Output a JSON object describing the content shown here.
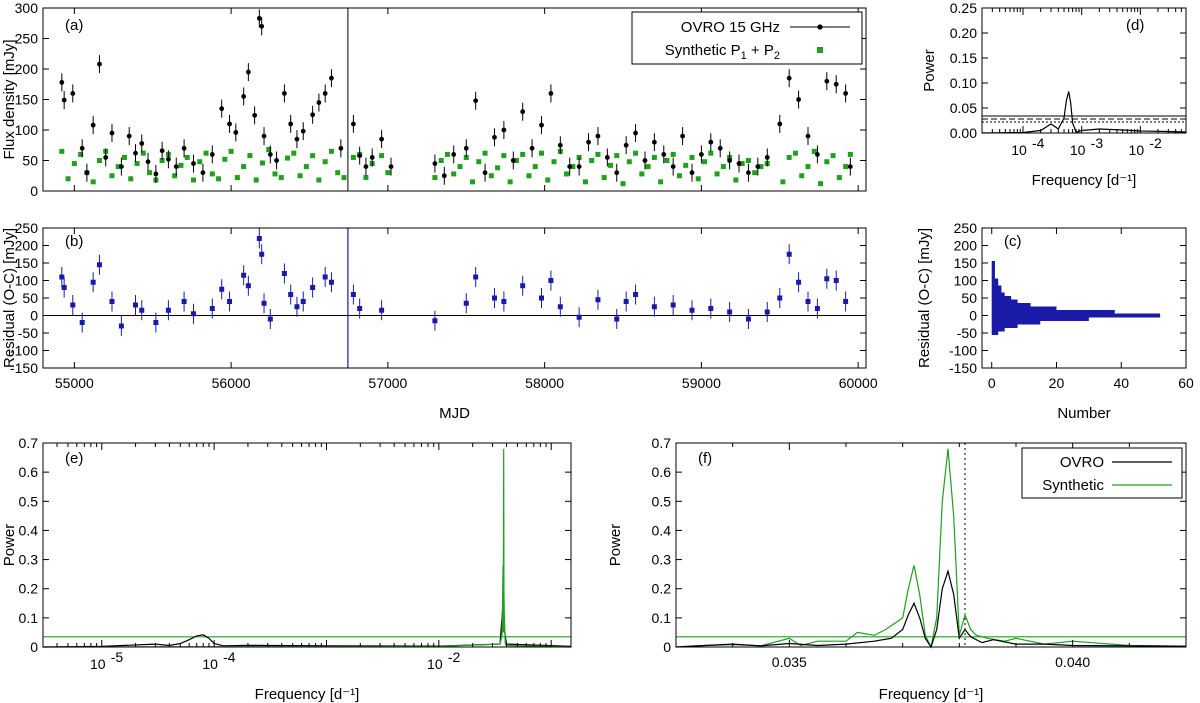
{
  "colors": {
    "ovro": "#000000",
    "synthetic": "#1fa01f",
    "residual": "#1a1aa8"
  },
  "chart_data": [
    {
      "id": "a",
      "panel_label": "(a)",
      "type": "scatter",
      "xlabel": "",
      "ylabel": "Flux density [mJy]",
      "xlim": [
        54800,
        60050
      ],
      "ylim": [
        0,
        300
      ],
      "yticks": [
        0,
        50,
        100,
        150,
        200,
        250,
        300
      ],
      "xticks": [
        55000,
        56000,
        57000,
        58000,
        59000,
        60000
      ],
      "grid": false,
      "legend_position": "top-right",
      "vertical_line_x": 56745,
      "series": [
        {
          "name": "OVRO 15 GHz",
          "name_main": "OVRO 15 GHz",
          "style": "points-with-errorbars",
          "x": [
            54920,
            54935,
            54990,
            55050,
            55080,
            55120,
            55160,
            55200,
            55240,
            55300,
            55350,
            55390,
            55430,
            55470,
            55520,
            55560,
            55600,
            55650,
            55700,
            55760,
            55820,
            55880,
            55940,
            55990,
            56030,
            56080,
            56110,
            56150,
            56180,
            56195,
            56210,
            56250,
            56290,
            56340,
            56380,
            56420,
            56460,
            56520,
            56560,
            56600,
            56640,
            56700,
            56780,
            56820,
            56860,
            56900,
            56960,
            57020,
            57300,
            57360,
            57420,
            57500,
            57560,
            57620,
            57680,
            57740,
            57800,
            57860,
            57920,
            57980,
            58040,
            58100,
            58160,
            58220,
            58280,
            58340,
            58400,
            58460,
            58520,
            58580,
            58640,
            58700,
            58760,
            58820,
            58880,
            58940,
            59000,
            59060,
            59120,
            59180,
            59240,
            59300,
            59360,
            59420,
            59500,
            59560,
            59620,
            59680,
            59740,
            59800,
            59860,
            59920,
            59950
          ],
          "y": [
            178,
            149,
            160,
            70,
            30,
            108,
            208,
            55,
            95,
            40,
            90,
            62,
            78,
            48,
            28,
            66,
            52,
            40,
            70,
            45,
            30,
            60,
            135,
            110,
            96,
            155,
            195,
            124,
            283,
            270,
            90,
            60,
            50,
            160,
            110,
            85,
            98,
            125,
            145,
            160,
            185,
            70,
            110,
            58,
            40,
            55,
            85,
            40,
            45,
            25,
            60,
            70,
            148,
            30,
            88,
            100,
            50,
            130,
            70,
            108,
            160,
            75,
            40,
            40,
            80,
            90,
            55,
            30,
            75,
            95,
            50,
            80,
            60,
            40,
            90,
            30,
            60,
            80,
            70,
            50,
            45,
            30,
            40,
            55,
            110,
            185,
            150,
            90,
            60,
            180,
            175,
            160,
            40
          ]
        },
        {
          "name": "Synthetic P1 + P2",
          "name_main": "Synthetic P",
          "sub1": "1",
          "plus": " + P",
          "sub2": "2",
          "style": "squares",
          "x": [
            54920,
            54960,
            55000,
            55040,
            55080,
            55120,
            55160,
            55200,
            55240,
            55280,
            55320,
            55360,
            55400,
            55440,
            55480,
            55520,
            55560,
            55600,
            55640,
            55680,
            55720,
            55760,
            55800,
            55840,
            55880,
            55920,
            55960,
            56000,
            56040,
            56080,
            56120,
            56160,
            56200,
            56240,
            56280,
            56320,
            56360,
            56400,
            56440,
            56480,
            56520,
            56560,
            56600,
            56640,
            56680,
            56720,
            56780,
            56820,
            56860,
            56900,
            56960,
            57000,
            57300,
            57340,
            57380,
            57420,
            57460,
            57500,
            57540,
            57580,
            57620,
            57660,
            57700,
            57740,
            57780,
            57820,
            57860,
            57900,
            57940,
            57980,
            58020,
            58060,
            58100,
            58140,
            58180,
            58220,
            58260,
            58300,
            58340,
            58380,
            58420,
            58460,
            58500,
            58540,
            58580,
            58620,
            58660,
            58700,
            58740,
            58780,
            58820,
            58860,
            58900,
            58940,
            58980,
            59020,
            59060,
            59100,
            59140,
            59180,
            59220,
            59260,
            59300,
            59340,
            59380,
            59420,
            59520,
            59560,
            59600,
            59640,
            59680,
            59720,
            59760,
            59800,
            59840,
            59880,
            59920,
            59950
          ],
          "y": [
            65,
            20,
            45,
            60,
            30,
            15,
            50,
            65,
            25,
            40,
            55,
            20,
            45,
            62,
            30,
            18,
            50,
            60,
            25,
            42,
            55,
            18,
            48,
            62,
            28,
            20,
            52,
            65,
            22,
            40,
            58,
            18,
            46,
            68,
            28,
            22,
            54,
            62,
            25,
            40,
            58,
            18,
            48,
            65,
            30,
            22,
            55,
            60,
            22,
            45,
            58,
            30,
            22,
            50,
            60,
            28,
            40,
            55,
            15,
            48,
            62,
            25,
            38,
            58,
            15,
            50,
            60,
            25,
            40,
            62,
            18,
            48,
            65,
            28,
            40,
            55,
            15,
            50,
            60,
            22,
            42,
            58,
            12,
            48,
            62,
            28,
            40,
            55,
            15,
            50,
            60,
            25,
            42,
            55,
            20,
            48,
            62,
            28,
            40,
            55,
            18,
            45,
            50,
            30,
            40,
            45,
            15,
            55,
            62,
            25,
            40,
            65,
            12,
            48,
            58,
            22,
            40,
            60
          ]
        }
      ]
    },
    {
      "id": "b",
      "panel_label": "(b)",
      "type": "scatter",
      "xlabel": "MJD",
      "ylabel": "Residual (O-C) [mJy]",
      "xlim": [
        54800,
        60050
      ],
      "ylim": [
        -150,
        250
      ],
      "yticks": [
        -150,
        -100,
        -50,
        0,
        50,
        100,
        150,
        200,
        250
      ],
      "xticks": [
        55000,
        56000,
        57000,
        58000,
        59000,
        60000
      ],
      "grid": false,
      "vertical_line_x": 56745,
      "zero_line": true,
      "series": [
        {
          "name": "Residual (O-C)",
          "style": "points-with-errorbars",
          "x": [
            54920,
            54935,
            54990,
            55050,
            55120,
            55160,
            55240,
            55300,
            55390,
            55430,
            55520,
            55600,
            55700,
            55760,
            55880,
            55940,
            55990,
            56080,
            56110,
            56180,
            56195,
            56210,
            56250,
            56340,
            56380,
            56420,
            56460,
            56520,
            56600,
            56640,
            56780,
            56820,
            56960,
            57300,
            57500,
            57560,
            57680,
            57740,
            57860,
            57980,
            58040,
            58100,
            58220,
            58340,
            58460,
            58520,
            58580,
            58700,
            58820,
            58940,
            59060,
            59180,
            59300,
            59420,
            59500,
            59560,
            59620,
            59680,
            59740,
            59800,
            59860,
            59920
          ],
          "y": [
            110,
            80,
            30,
            -20,
            95,
            145,
            40,
            -30,
            30,
            15,
            -20,
            15,
            40,
            5,
            20,
            75,
            40,
            115,
            85,
            220,
            175,
            35,
            -10,
            120,
            60,
            25,
            40,
            80,
            110,
            95,
            60,
            20,
            15,
            -15,
            35,
            110,
            50,
            40,
            85,
            50,
            100,
            25,
            -5,
            45,
            -10,
            40,
            60,
            25,
            30,
            15,
            20,
            10,
            -10,
            10,
            50,
            175,
            95,
            40,
            20,
            105,
            100,
            40
          ]
        }
      ]
    },
    {
      "id": "c",
      "panel_label": "(c)",
      "type": "bar",
      "orientation": "horizontal",
      "xlabel": "Number",
      "ylabel": "Residual (O-C) [mJy]",
      "xlim": [
        -3,
        60
      ],
      "ylim": [
        -150,
        250
      ],
      "xticks": [
        0,
        20,
        40,
        60
      ],
      "yticks": [
        -150,
        -100,
        -50,
        0,
        50,
        100,
        150,
        200,
        250
      ],
      "categories": [
        -50,
        -40,
        -30,
        -20,
        -10,
        0,
        10,
        20,
        30,
        40,
        50,
        60,
        70,
        80,
        90,
        100,
        110,
        120,
        130,
        140,
        150
      ],
      "values": [
        2,
        4,
        8,
        15,
        30,
        52,
        38,
        20,
        12,
        8,
        6,
        4,
        3,
        3,
        2,
        2,
        1,
        1,
        1,
        1,
        1
      ]
    },
    {
      "id": "d",
      "panel_label": "(d)",
      "type": "line",
      "xscale": "log",
      "xlabel": "Frequency [d⁻¹]",
      "ylabel": "Power",
      "xlim": [
        2e-05,
        0.06
      ],
      "ylim": [
        0,
        0.25
      ],
      "yticks": [
        0,
        0.05,
        0.1,
        0.15,
        0.2,
        0.25
      ],
      "xtick_labels": [
        "10",
        "10",
        "10"
      ],
      "xtick_exponents": [
        "-4",
        "-3",
        "-2"
      ],
      "xtick_values": [
        0.0001,
        0.001,
        0.01
      ],
      "significance_levels": [
        0.034,
        0.028,
        0.022
      ],
      "x": [
        2e-05,
        0.0001,
        0.0002,
        0.0003,
        0.0004,
        0.0005,
        0.00055,
        0.0006,
        0.00065,
        0.0007,
        0.0008,
        0.001,
        0.002,
        0.005,
        0.01,
        0.03,
        0.06
      ],
      "y": [
        0.0,
        0.001,
        0.005,
        0.018,
        0.008,
        0.03,
        0.065,
        0.083,
        0.06,
        0.02,
        0.002,
        0.005,
        0.008,
        0.006,
        0.004,
        0.003,
        0.002
      ]
    },
    {
      "id": "e",
      "panel_label": "(e)",
      "type": "line",
      "xscale": "log",
      "xlabel": "Frequency [d⁻¹]",
      "ylabel": "Power",
      "xlim": [
        3e-06,
        0.15
      ],
      "ylim": [
        0,
        0.7
      ],
      "yticks": [
        0,
        0.1,
        0.2,
        0.3,
        0.4,
        0.5,
        0.6,
        0.7
      ],
      "xtick_labels": [
        "10",
        "10",
        "10"
      ],
      "xtick_exponents": [
        "-5",
        "-4",
        "-2"
      ],
      "xtick_values": [
        1e-05,
        0.0001,
        0.01
      ],
      "significance_level": 0.035,
      "series": [
        {
          "name": "OVRO",
          "x": [
            3e-06,
            1e-05,
            3e-05,
            4e-05,
            5e-05,
            6e-05,
            7e-05,
            8e-05,
            9e-05,
            0.0001,
            0.00012,
            0.0002,
            0.001,
            0.01,
            0.035,
            0.0373,
            0.0378,
            0.0382,
            0.04,
            0.15
          ],
          "y": [
            0.0,
            0.002,
            0.01,
            0.005,
            0.012,
            0.025,
            0.038,
            0.042,
            0.03,
            0.012,
            0.004,
            0.006,
            0.004,
            0.003,
            0.01,
            0.15,
            0.26,
            0.06,
            0.01,
            0.002
          ]
        },
        {
          "name": "Synthetic",
          "x": [
            3e-06,
            0.001,
            0.01,
            0.035,
            0.0365,
            0.0373,
            0.0375,
            0.0378,
            0.038,
            0.0382,
            0.039,
            0.04,
            0.15
          ],
          "y": [
            0.0,
            0.001,
            0.002,
            0.01,
            0.04,
            0.28,
            0.05,
            0.68,
            0.05,
            0.11,
            0.01,
            0.005,
            0.0
          ]
        }
      ]
    },
    {
      "id": "f",
      "panel_label": "(f)",
      "type": "line",
      "xlabel": "Frequency [d⁻¹]",
      "ylabel": "Power",
      "xlim": [
        0.033,
        0.042
      ],
      "ylim": [
        0,
        0.7
      ],
      "yticks": [
        0,
        0.1,
        0.2,
        0.3,
        0.4,
        0.5,
        0.6,
        0.7
      ],
      "xticks": [
        0.035,
        0.04
      ],
      "xtick_labels": [
        "0.035",
        "0.040"
      ],
      "legend_position": "top-right",
      "significance_level": 0.035,
      "dotted_vline_x": 0.0381,
      "series": [
        {
          "name": "OVRO",
          "x": [
            0.033,
            0.0335,
            0.034,
            0.0345,
            0.035,
            0.0355,
            0.036,
            0.0365,
            0.0368,
            0.037,
            0.0371,
            0.0372,
            0.0373,
            0.0374,
            0.0375,
            0.0376,
            0.0377,
            0.0378,
            0.0379,
            0.038,
            0.0381,
            0.0382,
            0.0384,
            0.0386,
            0.039,
            0.0395,
            0.04,
            0.041,
            0.042
          ],
          "y": [
            0.0,
            0.005,
            0.01,
            0.004,
            0.012,
            0.005,
            0.01,
            0.02,
            0.03,
            0.06,
            0.11,
            0.15,
            0.1,
            0.03,
            0.0,
            0.06,
            0.2,
            0.26,
            0.18,
            0.03,
            0.06,
            0.035,
            0.015,
            0.025,
            0.01,
            0.01,
            0.005,
            0.004,
            0.002
          ]
        },
        {
          "name": "Synthetic",
          "x": [
            0.033,
            0.0335,
            0.034,
            0.0345,
            0.035,
            0.0352,
            0.0355,
            0.036,
            0.0362,
            0.0365,
            0.0367,
            0.037,
            0.0371,
            0.0372,
            0.0373,
            0.0374,
            0.0375,
            0.0376,
            0.0377,
            0.0378,
            0.0379,
            0.038,
            0.0381,
            0.0382,
            0.0383,
            0.0385,
            0.0388,
            0.039,
            0.0395,
            0.04,
            0.041,
            0.042
          ],
          "y": [
            0.0,
            0.005,
            0.008,
            0.004,
            0.03,
            0.005,
            0.02,
            0.02,
            0.05,
            0.04,
            0.06,
            0.1,
            0.2,
            0.28,
            0.18,
            0.04,
            0.0,
            0.1,
            0.5,
            0.68,
            0.45,
            0.04,
            0.11,
            0.06,
            0.04,
            0.03,
            0.02,
            0.03,
            0.01,
            0.02,
            0.005,
            0.003
          ]
        }
      ]
    }
  ]
}
